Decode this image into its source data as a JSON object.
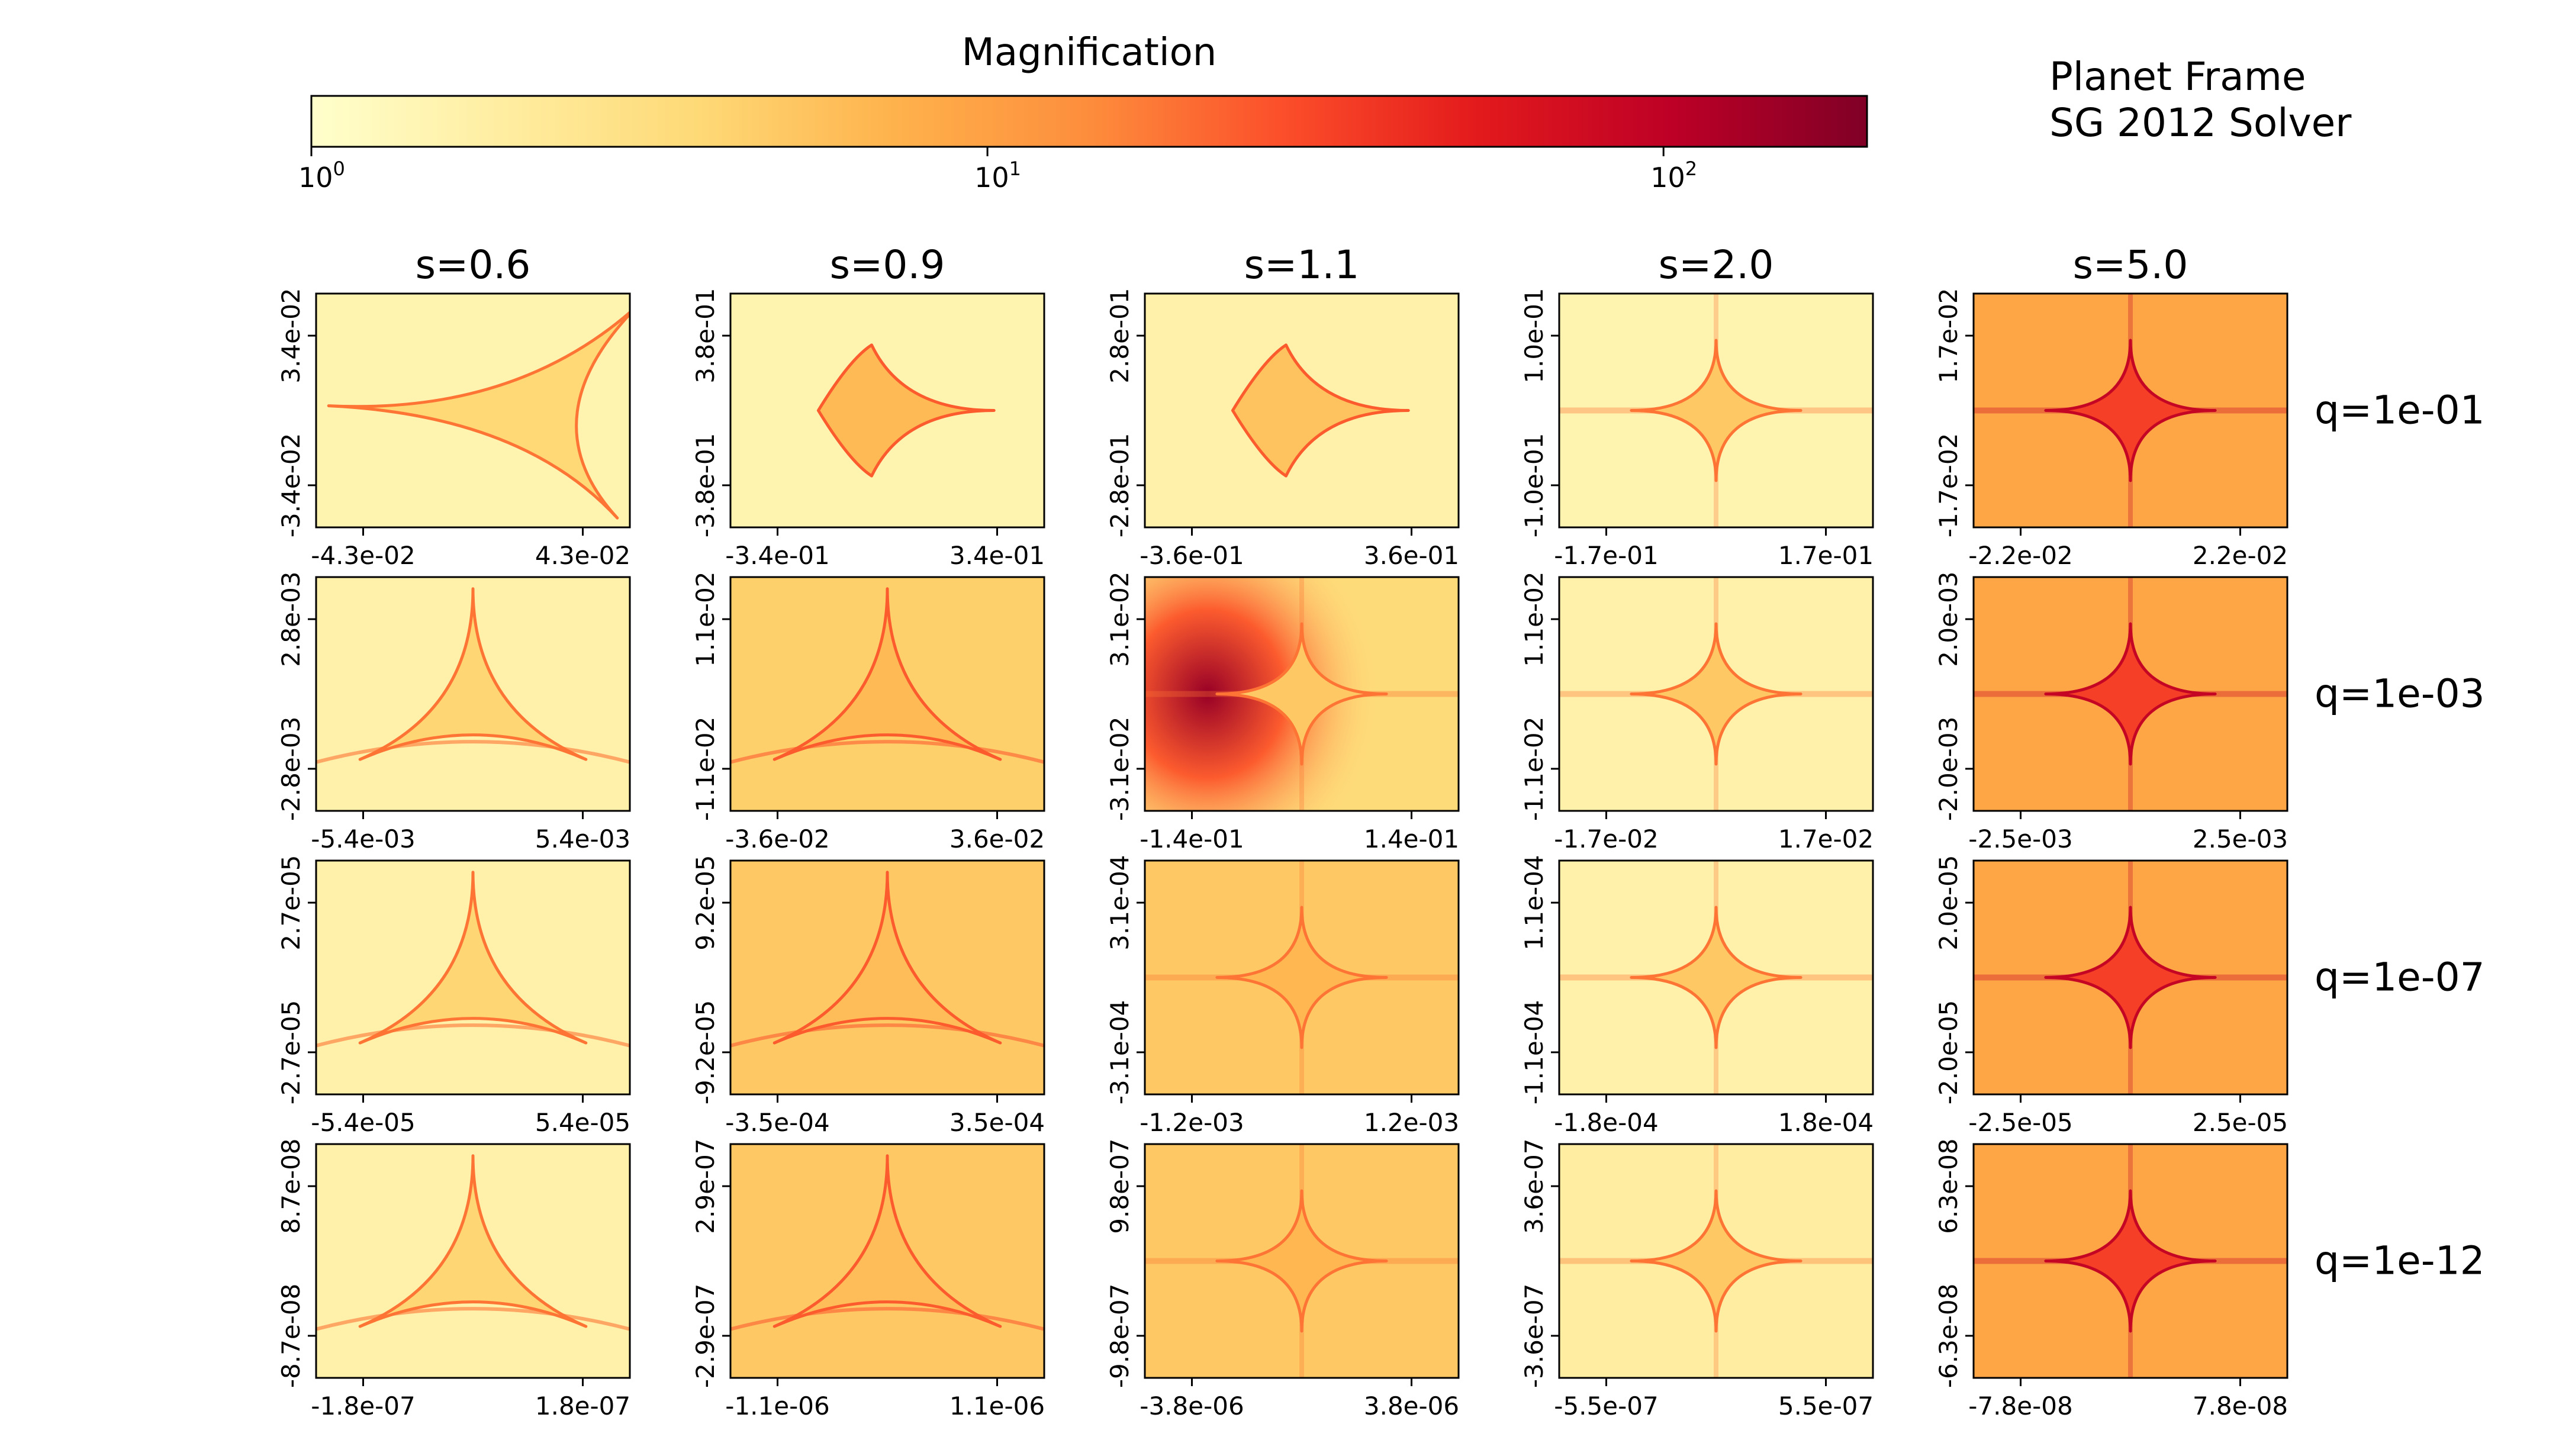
{
  "colorbar": {
    "label": "Magnification",
    "scale": "log",
    "range": [
      1,
      200
    ],
    "colormap": "YlOrRd",
    "ticks": [
      {
        "value": 1,
        "base": "10",
        "exp": "0"
      },
      {
        "value": 10,
        "base": "10",
        "exp": "1"
      },
      {
        "value": 100,
        "base": "10",
        "exp": "2"
      }
    ],
    "stops": [
      "#ffffcc",
      "#ffeda0",
      "#fed976",
      "#feb24c",
      "#fd8d3c",
      "#fc4e2a",
      "#e31a1c",
      "#bd0026",
      "#800026"
    ]
  },
  "info": {
    "line1": "Planet Frame",
    "line2": "SG 2012 Solver"
  },
  "chart_data": {
    "type": "heatmap",
    "title": "",
    "columns": [
      "s=0.6",
      "s=0.9",
      "s=1.1",
      "s=2.0",
      "s=5.0"
    ],
    "rows": [
      "q=1e-01",
      "q=1e-03",
      "q=1e-07",
      "q=1e-12"
    ],
    "cells": [
      [
        {
          "x_ticks": [
            "-4.3e-02",
            "4.3e-02"
          ],
          "y_ticks": [
            "3.4e-02",
            "-3.4e-02"
          ],
          "caustic": "triangle-up",
          "bg": 0.08,
          "in": 0.25,
          "edge": 0.55
        },
        {
          "x_ticks": [
            "-3.4e-01",
            "3.4e-01"
          ],
          "y_ticks": [
            "3.8e-01",
            "-3.8e-01"
          ],
          "caustic": "resonant",
          "bg": 0.08,
          "in": 0.35,
          "edge": 0.6
        },
        {
          "x_ticks": [
            "-3.6e-01",
            "3.6e-01"
          ],
          "y_ticks": [
            "2.8e-01",
            "-2.8e-01"
          ],
          "caustic": "resonant",
          "bg": 0.1,
          "in": 0.32,
          "edge": 0.6
        },
        {
          "x_ticks": [
            "-1.7e-01",
            "1.7e-01"
          ],
          "y_ticks": [
            "1.0e-01",
            "-1.0e-01"
          ],
          "caustic": "diamond",
          "bg": 0.08,
          "in": 0.3,
          "edge": 0.55
        },
        {
          "x_ticks": [
            "-2.2e-02",
            "2.2e-02"
          ],
          "y_ticks": [
            "1.7e-02",
            "-1.7e-02"
          ],
          "caustic": "diamond",
          "bg": 0.42,
          "in": 0.66,
          "edge": 0.85
        }
      ],
      [
        {
          "x_ticks": [
            "-5.4e-03",
            "5.4e-03"
          ],
          "y_ticks": [
            "2.8e-03",
            "-2.8e-03"
          ],
          "caustic": "triangle-down",
          "bg": 0.1,
          "in": 0.26,
          "edge": 0.55
        },
        {
          "x_ticks": [
            "-3.6e-02",
            "3.6e-02"
          ],
          "y_ticks": [
            "1.1e-02",
            "-1.1e-02"
          ],
          "caustic": "triangle-down",
          "bg": 0.28,
          "in": 0.35,
          "edge": 0.6
        },
        {
          "x_ticks": [
            "-1.4e-01",
            "1.4e-01"
          ],
          "y_ticks": [
            "3.1e-02",
            "-3.1e-02"
          ],
          "caustic": "diamond-pole",
          "bg": 0.24,
          "in": 0.3,
          "edge": 0.55
        },
        {
          "x_ticks": [
            "-1.7e-02",
            "1.7e-02"
          ],
          "y_ticks": [
            "1.1e-02",
            "-1.1e-02"
          ],
          "caustic": "diamond",
          "bg": 0.1,
          "in": 0.3,
          "edge": 0.55
        },
        {
          "x_ticks": [
            "-2.5e-03",
            "2.5e-03"
          ],
          "y_ticks": [
            "2.0e-03",
            "-2.0e-03"
          ],
          "caustic": "diamond",
          "bg": 0.42,
          "in": 0.66,
          "edge": 0.85
        }
      ],
      [
        {
          "x_ticks": [
            "-5.4e-05",
            "5.4e-05"
          ],
          "y_ticks": [
            "2.7e-05",
            "-2.7e-05"
          ],
          "caustic": "triangle-down",
          "bg": 0.1,
          "in": 0.26,
          "edge": 0.55
        },
        {
          "x_ticks": [
            "-3.5e-04",
            "3.5e-04"
          ],
          "y_ticks": [
            "9.2e-05",
            "-9.2e-05"
          ],
          "caustic": "triangle-down",
          "bg": 0.3,
          "in": 0.34,
          "edge": 0.6
        },
        {
          "x_ticks": [
            "-1.2e-03",
            "1.2e-03"
          ],
          "y_ticks": [
            "3.1e-04",
            "-3.1e-04"
          ],
          "caustic": "diamond",
          "bg": 0.3,
          "in": 0.36,
          "edge": 0.55
        },
        {
          "x_ticks": [
            "-1.8e-04",
            "1.8e-04"
          ],
          "y_ticks": [
            "1.1e-04",
            "-1.1e-04"
          ],
          "caustic": "diamond",
          "bg": 0.1,
          "in": 0.3,
          "edge": 0.55
        },
        {
          "x_ticks": [
            "-2.5e-05",
            "2.5e-05"
          ],
          "y_ticks": [
            "2.0e-05",
            "-2.0e-05"
          ],
          "caustic": "diamond",
          "bg": 0.42,
          "in": 0.66,
          "edge": 0.85
        }
      ],
      [
        {
          "x_ticks": [
            "-1.8e-07",
            "1.8e-07"
          ],
          "y_ticks": [
            "8.7e-08",
            "-8.7e-08"
          ],
          "caustic": "triangle-down",
          "bg": 0.1,
          "in": 0.26,
          "edge": 0.55
        },
        {
          "x_ticks": [
            "-1.1e-06",
            "1.1e-06"
          ],
          "y_ticks": [
            "2.9e-07",
            "-2.9e-07"
          ],
          "caustic": "triangle-down",
          "bg": 0.3,
          "in": 0.34,
          "edge": 0.6
        },
        {
          "x_ticks": [
            "-3.8e-06",
            "3.8e-06"
          ],
          "y_ticks": [
            "9.8e-07",
            "-9.8e-07"
          ],
          "caustic": "diamond",
          "bg": 0.3,
          "in": 0.36,
          "edge": 0.55
        },
        {
          "x_ticks": [
            "-5.5e-07",
            "5.5e-07"
          ],
          "y_ticks": [
            "3.6e-07",
            "-3.6e-07"
          ],
          "caustic": "diamond",
          "bg": 0.12,
          "in": 0.3,
          "edge": 0.55
        },
        {
          "x_ticks": [
            "-7.8e-08",
            "7.8e-08"
          ],
          "y_ticks": [
            "6.3e-08",
            "-6.3e-08"
          ],
          "caustic": "diamond",
          "bg": 0.42,
          "in": 0.66,
          "edge": 0.85
        }
      ]
    ]
  }
}
